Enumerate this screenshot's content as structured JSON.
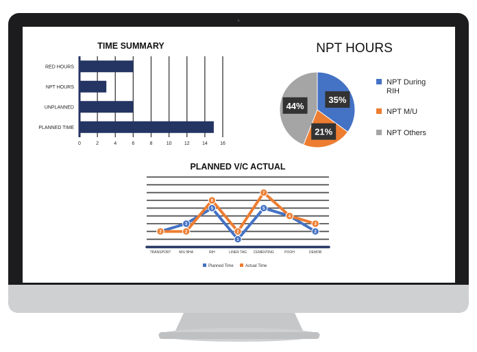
{
  "colors": {
    "bezel": "#1c1c1e",
    "screen": "#ffffff",
    "chin": "#cfd0d2",
    "stand": "#c6c7c9",
    "bar_navy": "#243463",
    "blue": "#4472c4",
    "orange": "#ed7d31",
    "gray": "#a5a5a5",
    "label_box": "#333333"
  },
  "time_summary": {
    "title": "TIME SUMMARY",
    "legend": "",
    "chart_data": {
      "type": "bar",
      "orientation": "horizontal",
      "categories": [
        "RED HOURS",
        "NPT HOURS",
        "UNPLANNED",
        "PLANNED TIME"
      ],
      "values": [
        6,
        3,
        6,
        15
      ],
      "xlim": [
        0,
        16
      ],
      "xticks": [
        "0",
        "2",
        "4",
        "6",
        "8",
        "10",
        "12",
        "14",
        "16"
      ],
      "grid": true
    }
  },
  "npt_hours": {
    "title": "NPT HOURS",
    "chart_data": {
      "type": "pie",
      "slices": [
        {
          "name": "NPT During RIH",
          "value": 35,
          "label": "35%",
          "color": "#4472c4"
        },
        {
          "name": "NPT M/U",
          "value": 21,
          "label": "21%",
          "color": "#ed7d31"
        },
        {
          "name": "NPT Others",
          "value": 44,
          "label": "44%",
          "color": "#a5a5a5"
        }
      ],
      "legend_position": "right"
    },
    "legend": [
      {
        "line1": "NPT During",
        "line2": "RIH"
      },
      {
        "line1": "NPT M/U",
        "line2": ""
      },
      {
        "line1": "NPT Others",
        "line2": ""
      }
    ]
  },
  "planned_vs_actual": {
    "title": "PLANNED V/C ACTUAL",
    "chart_data": {
      "type": "line",
      "categories": [
        "TRANSPORT",
        "M/U BHA",
        "RIH",
        "LINER TAG",
        "CEMENTING",
        "POOH",
        "DEMOB"
      ],
      "series": [
        {
          "name": "Planned Time",
          "values": [
            2,
            3,
            5,
            1,
            5,
            4,
            2
          ],
          "color": "#4472c4"
        },
        {
          "name": "Actual Time",
          "values": [
            2,
            2,
            6,
            2,
            7,
            4,
            3
          ],
          "color": "#ed7d31"
        }
      ],
      "ylim": [
        0,
        9
      ],
      "grid": true,
      "legend_position": "bottom"
    }
  }
}
